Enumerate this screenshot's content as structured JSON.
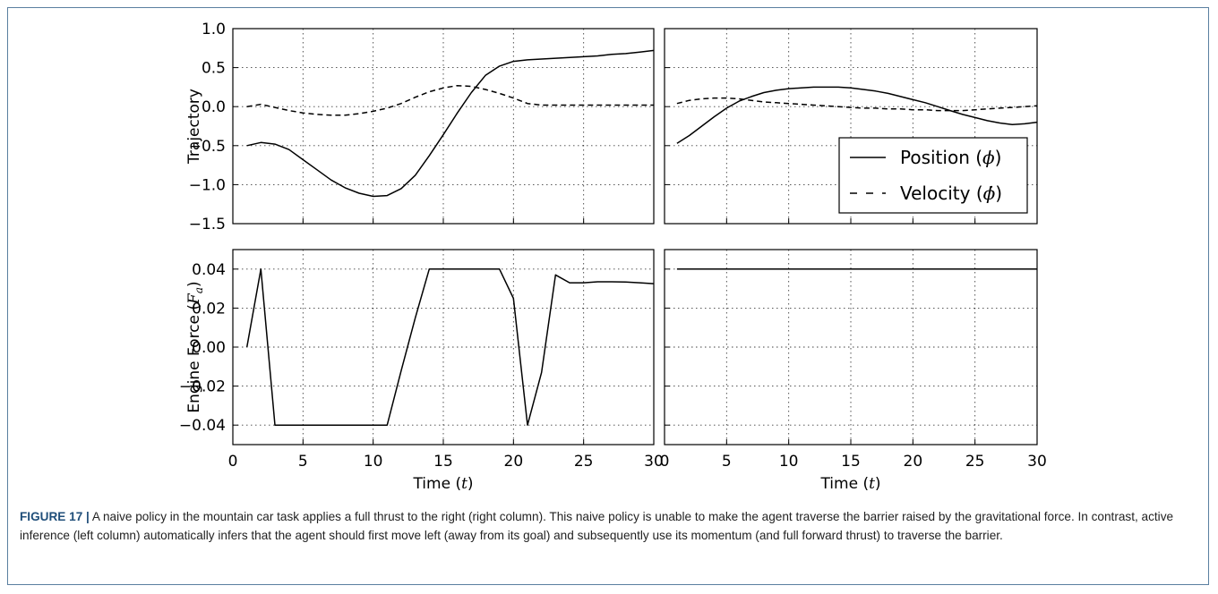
{
  "caption": {
    "label": "FIGURE 17 |",
    "text": " A naive policy in the mountain car task applies a full thrust to the right (right column). This naive policy is unable to make the agent traverse the barrier raised by the gravitational force. In contrast, active inference (left column) automatically infers that the agent should first move left (away from its goal) and subsequently use its momentum (and full forward thrust) to traverse the barrier."
  },
  "chart_data": [
    {
      "type": "line",
      "panel": "top-left",
      "ylabel": "Trajectory",
      "xlim": [
        0,
        30
      ],
      "ylim": [
        -1.5,
        1.0
      ],
      "xticks": [],
      "yticks": [
        "1.0",
        "0.5",
        "0.0",
        "−0.5",
        "−1.0",
        "−1.5"
      ],
      "ytick_values": [
        1.0,
        0.5,
        0.0,
        -0.5,
        -1.0,
        -1.5
      ],
      "grid": true,
      "series": [
        {
          "style": "solid",
          "x": [
            1,
            2,
            3,
            4,
            5,
            6,
            7,
            8,
            9,
            10,
            11,
            12,
            13,
            14,
            15,
            16,
            17,
            18,
            19,
            20,
            21,
            22,
            23,
            24,
            25,
            26,
            27,
            28,
            29,
            30
          ],
          "y": [
            -0.5,
            -0.46,
            -0.48,
            -0.55,
            -0.68,
            -0.81,
            -0.94,
            -1.04,
            -1.11,
            -1.15,
            -1.14,
            -1.05,
            -0.88,
            -0.63,
            -0.36,
            -0.08,
            0.18,
            0.4,
            0.52,
            0.58,
            0.6,
            0.61,
            0.62,
            0.63,
            0.64,
            0.65,
            0.67,
            0.68,
            0.7,
            0.72
          ]
        },
        {
          "style": "dashed",
          "x": [
            1,
            2,
            3,
            4,
            5,
            6,
            7,
            8,
            9,
            10,
            11,
            12,
            13,
            14,
            15,
            16,
            17,
            18,
            19,
            20,
            21,
            22,
            23,
            24,
            25,
            26,
            27,
            28,
            29,
            30
          ],
          "y": [
            0.0,
            0.03,
            -0.01,
            -0.05,
            -0.08,
            -0.1,
            -0.11,
            -0.11,
            -0.09,
            -0.06,
            -0.02,
            0.04,
            0.12,
            0.19,
            0.24,
            0.27,
            0.26,
            0.22,
            0.17,
            0.11,
            0.04,
            0.02,
            0.02,
            0.02,
            0.02,
            0.02,
            0.02,
            0.02,
            0.02,
            0.02
          ]
        }
      ]
    },
    {
      "type": "line",
      "panel": "top-right",
      "xlim": [
        0,
        30
      ],
      "ylim": [
        -1.5,
        1.0
      ],
      "grid": true,
      "legend": {
        "placement": "lower-right",
        "entries": [
          {
            "style": "solid",
            "label": "Position (",
            "symbol": "ϕ",
            "suffix": ")"
          },
          {
            "style": "dashed",
            "label": "Velocity (",
            "symbol": "ϕ̇",
            "suffix": ")"
          }
        ]
      },
      "series": [
        {
          "style": "solid",
          "x": [
            1,
            2,
            3,
            4,
            5,
            6,
            7,
            8,
            9,
            10,
            11,
            12,
            13,
            14,
            15,
            16,
            17,
            18,
            19,
            20,
            21,
            22,
            23,
            24,
            25,
            26,
            27,
            28,
            29,
            30
          ],
          "y": [
            -0.47,
            -0.37,
            -0.25,
            -0.13,
            -0.02,
            0.07,
            0.13,
            0.18,
            0.21,
            0.23,
            0.24,
            0.25,
            0.25,
            0.25,
            0.24,
            0.22,
            0.2,
            0.17,
            0.13,
            0.09,
            0.05,
            0.0,
            -0.05,
            -0.1,
            -0.14,
            -0.18,
            -0.21,
            -0.23,
            -0.22,
            -0.2
          ]
        },
        {
          "style": "dashed",
          "x": [
            1,
            2,
            3,
            4,
            5,
            6,
            7,
            8,
            9,
            10,
            11,
            12,
            13,
            14,
            15,
            16,
            17,
            18,
            19,
            20,
            21,
            22,
            23,
            24,
            25,
            26,
            27,
            28,
            29,
            30
          ],
          "y": [
            0.04,
            0.08,
            0.1,
            0.11,
            0.11,
            0.1,
            0.08,
            0.06,
            0.05,
            0.04,
            0.03,
            0.02,
            0.01,
            0.0,
            -0.01,
            -0.02,
            -0.02,
            -0.03,
            -0.03,
            -0.04,
            -0.04,
            -0.05,
            -0.05,
            -0.05,
            -0.04,
            -0.03,
            -0.02,
            -0.01,
            0.0,
            0.01
          ]
        }
      ]
    },
    {
      "type": "line",
      "panel": "bottom-left",
      "ylabel": "Engine Force (",
      "ylabel_symbol": "F",
      "ylabel_subscript": "a",
      "ylabel_suffix": ")",
      "xlabel": "Time (",
      "xlabel_symbol": "t",
      "xlabel_suffix": ")",
      "xlim": [
        0,
        30
      ],
      "ylim": [
        -0.05,
        0.05
      ],
      "xticks": [
        "0",
        "5",
        "10",
        "15",
        "20",
        "25",
        "30"
      ],
      "xtick_values": [
        0,
        5,
        10,
        15,
        20,
        25,
        30
      ],
      "yticks": [
        "0.04",
        "0.02",
        "0.00",
        "−0.02",
        "−0.04"
      ],
      "ytick_values": [
        0.04,
        0.02,
        0.0,
        -0.02,
        -0.04
      ],
      "grid": true,
      "series": [
        {
          "style": "solid",
          "x": [
            1,
            2,
            3,
            4,
            5,
            6,
            7,
            8,
            9,
            10,
            11,
            12,
            13,
            14,
            15,
            16,
            17,
            18,
            19,
            20,
            21,
            22,
            23,
            24,
            25,
            26,
            27,
            28,
            29,
            30
          ],
          "y": [
            0.0,
            0.04,
            -0.04,
            -0.04,
            -0.04,
            -0.04,
            -0.04,
            -0.04,
            -0.04,
            -0.04,
            -0.04,
            -0.012,
            0.015,
            0.04,
            0.04,
            0.04,
            0.04,
            0.04,
            0.04,
            0.025,
            -0.04,
            -0.013,
            0.037,
            0.033,
            0.033,
            0.0335,
            0.0335,
            0.0334,
            0.033,
            0.0325
          ]
        }
      ]
    },
    {
      "type": "line",
      "panel": "bottom-right",
      "xlabel": "Time (",
      "xlabel_symbol": "t",
      "xlabel_suffix": ")",
      "xlim": [
        0,
        30
      ],
      "ylim": [
        -0.05,
        0.05
      ],
      "xticks": [
        "0",
        "5",
        "10",
        "15",
        "20",
        "25",
        "30"
      ],
      "xtick_values": [
        0,
        5,
        10,
        15,
        20,
        25,
        30
      ],
      "grid": true,
      "series": [
        {
          "style": "solid",
          "x": [
            1,
            30
          ],
          "y": [
            0.04,
            0.04
          ]
        }
      ]
    }
  ]
}
